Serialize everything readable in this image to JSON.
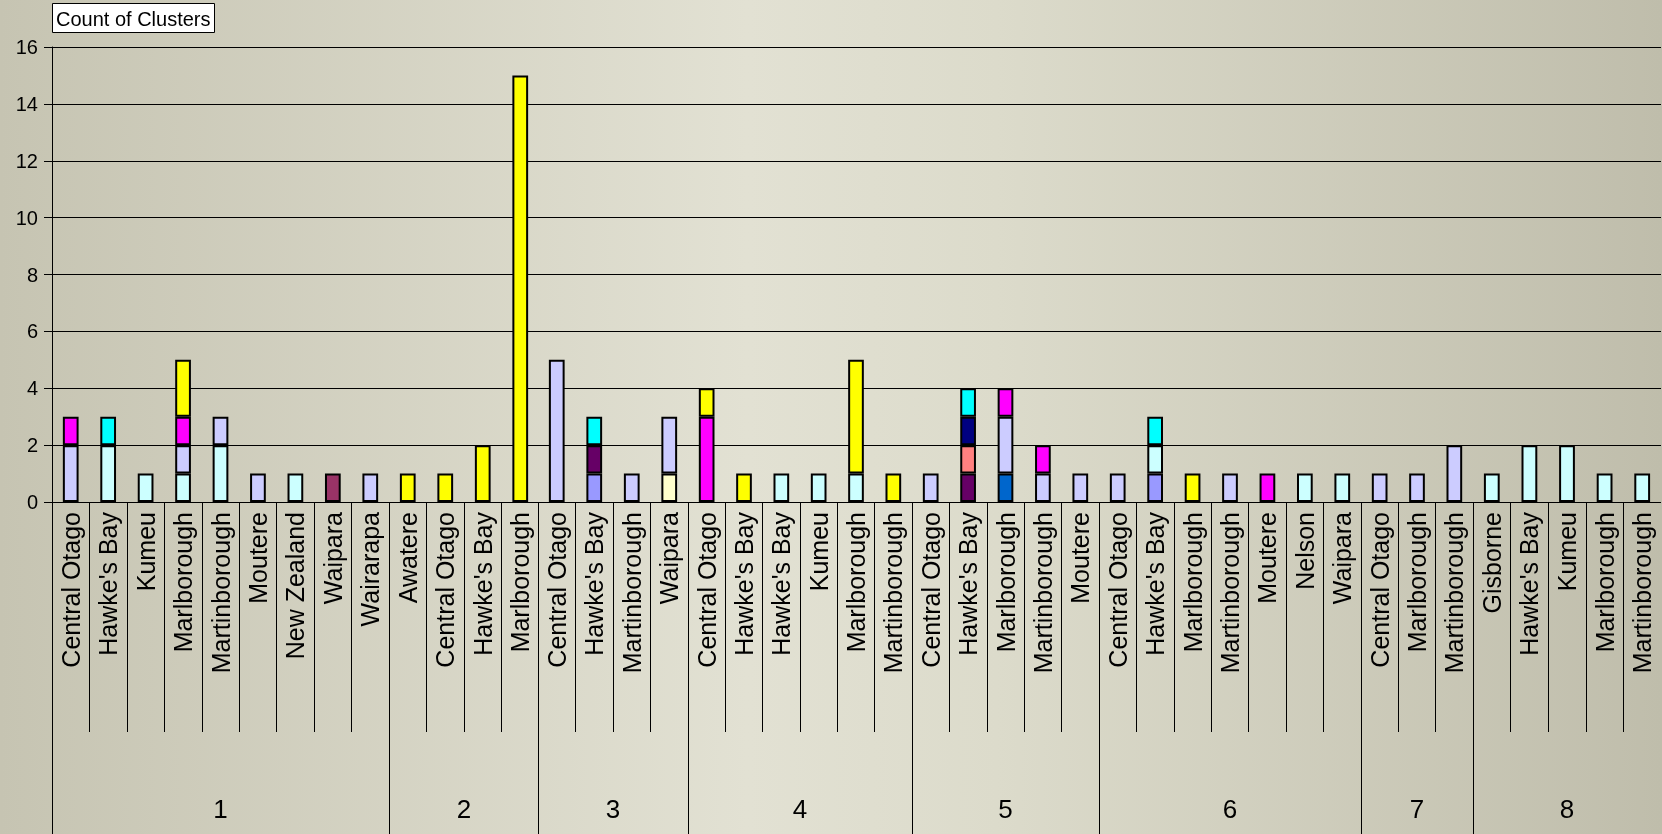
{
  "chart_data": [
    {
      "type": "bar",
      "title": "Count of Clusters",
      "xlabel": "1",
      "stacked": true,
      "grid": "y",
      "ylim": [
        0,
        16
      ],
      "yticks": [
        0,
        2,
        4,
        6,
        8,
        10,
        12,
        14,
        16
      ],
      "categories": [
        "Central Otago",
        "Hawke's Bay",
        "Kumeu",
        "Marlborough",
        "Martinborough",
        "Moutere",
        "New Zealand",
        "Waipara",
        "Wairarapa"
      ],
      "series": [
        {
          "color": "#993366",
          "values": [
            null,
            null,
            null,
            null,
            null,
            null,
            null,
            1,
            null
          ]
        },
        {
          "color": "#ccffff",
          "values": [
            null,
            2,
            1,
            1,
            2,
            null,
            1,
            null,
            null
          ]
        },
        {
          "color": "#ccccff",
          "values": [
            2,
            null,
            null,
            1,
            1,
            1,
            null,
            null,
            1
          ]
        },
        {
          "color": "#ff00ff",
          "values": [
            1,
            null,
            null,
            1,
            null,
            null,
            null,
            null,
            null
          ]
        },
        {
          "color": "#ffff00",
          "values": [
            null,
            null,
            null,
            2,
            null,
            null,
            null,
            null,
            null
          ]
        },
        {
          "color": "#00ffff",
          "values": [
            null,
            1,
            null,
            null,
            null,
            null,
            null,
            null,
            null
          ]
        }
      ]
    },
    {
      "type": "bar",
      "xlabel": "2",
      "stacked": true,
      "grid": "y",
      "ylim": [
        0,
        16
      ],
      "yticks": [
        0,
        2,
        4,
        6,
        8,
        10,
        12,
        14,
        16
      ],
      "tick_labels": "x",
      "categories": [
        "Awatere",
        "Central Otago",
        "Hawke's Bay",
        "Marlborough"
      ],
      "series": [
        {
          "color": "#ffff00",
          "values": [
            1,
            1,
            2,
            15
          ]
        }
      ]
    },
    {
      "type": "bar",
      "xlabel": "3",
      "stacked": true,
      "grid": "y",
      "ylim": [
        0,
        16
      ],
      "yticks": [
        0,
        2,
        4,
        6,
        8,
        10,
        12,
        14,
        16
      ],
      "tick_labels": "x",
      "categories": [
        "Central Otago",
        "Hawke's Bay",
        "Martinborough",
        "Waipara"
      ],
      "series": [
        {
          "color": "#9999ff",
          "values": [
            null,
            1,
            null,
            null
          ]
        },
        {
          "color": "#660066",
          "values": [
            null,
            1,
            null,
            null
          ]
        },
        {
          "color": "#ffffcc",
          "values": [
            null,
            null,
            null,
            1
          ]
        },
        {
          "color": "#ccccff",
          "values": [
            5,
            null,
            1,
            2
          ]
        },
        {
          "color": "#00ffff",
          "values": [
            null,
            1,
            null,
            null
          ]
        }
      ]
    },
    {
      "type": "bar",
      "xlabel": "4",
      "stacked": true,
      "grid": "y",
      "ylim": [
        0,
        16
      ],
      "yticks": [
        0,
        2,
        4,
        6,
        8,
        10,
        12,
        14,
        16
      ],
      "tick_labels": "x",
      "categories": [
        "Central Otago",
        "Hawke's Bay",
        "Hawke's Bay",
        "Kumeu",
        "Marlborough",
        "Martinborough"
      ],
      "series": [
        {
          "color": "#ccffff",
          "values": [
            null,
            null,
            1,
            1,
            1,
            null
          ]
        },
        {
          "color": "#ff00ff",
          "values": [
            3,
            null,
            null,
            null,
            null,
            null
          ]
        },
        {
          "color": "#ffff00",
          "values": [
            1,
            1,
            null,
            null,
            4,
            1
          ]
        }
      ]
    },
    {
      "type": "bar",
      "xlabel": "5",
      "stacked": true,
      "grid": "y",
      "ylim": [
        0,
        16
      ],
      "yticks": [
        0,
        2,
        4,
        6,
        8,
        10,
        12,
        14,
        16
      ],
      "tick_labels": "x",
      "categories": [
        "Central Otago",
        "Hawke's Bay",
        "Marlborough",
        "Martinborough",
        "Moutere"
      ],
      "series": [
        {
          "color": "#0066cc",
          "values": [
            null,
            null,
            1,
            null,
            null
          ]
        },
        {
          "color": "#660066",
          "values": [
            null,
            1,
            null,
            null,
            null
          ]
        },
        {
          "color": "#ff8080",
          "values": [
            null,
            1,
            null,
            null,
            null
          ]
        },
        {
          "color": "#000080",
          "values": [
            null,
            1,
            null,
            null,
            null
          ]
        },
        {
          "color": "#ccccff",
          "values": [
            1,
            null,
            2,
            1,
            1
          ]
        },
        {
          "color": "#ff00ff",
          "values": [
            null,
            null,
            1,
            1,
            null
          ]
        },
        {
          "color": "#00ffff",
          "values": [
            null,
            1,
            null,
            null,
            null
          ]
        }
      ]
    },
    {
      "type": "bar",
      "xlabel": "6",
      "stacked": true,
      "grid": "y",
      "ylim": [
        0,
        16
      ],
      "yticks": [
        0,
        2,
        4,
        6,
        8,
        10,
        12,
        14,
        16
      ],
      "tick_labels": "x",
      "categories": [
        "Central Otago",
        "Hawke's Bay",
        "Marlborough",
        "Martinborough",
        "Moutere",
        "Nelson",
        "Waipara"
      ],
      "series": [
        {
          "color": "#9999ff",
          "values": [
            null,
            1,
            null,
            null,
            null,
            null,
            null
          ]
        },
        {
          "color": "#ccffff",
          "values": [
            null,
            1,
            null,
            null,
            null,
            1,
            1
          ]
        },
        {
          "color": "#ccccff",
          "values": [
            1,
            null,
            null,
            1,
            null,
            null,
            null
          ]
        },
        {
          "color": "#ff00ff",
          "values": [
            null,
            null,
            null,
            null,
            1,
            null,
            null
          ]
        },
        {
          "color": "#ffff00",
          "values": [
            null,
            null,
            1,
            null,
            null,
            null,
            null
          ]
        },
        {
          "color": "#00ffff",
          "values": [
            null,
            1,
            null,
            null,
            null,
            null,
            null
          ]
        }
      ]
    },
    {
      "type": "bar",
      "xlabel": "7",
      "stacked": true,
      "grid": "y",
      "ylim": [
        0,
        16
      ],
      "yticks": [
        0,
        2,
        4,
        6,
        8,
        10,
        12,
        14,
        16
      ],
      "tick_labels": "x",
      "categories": [
        "Central Otago",
        "Marlborough",
        "Martinborough"
      ],
      "series": [
        {
          "color": "#ccccff",
          "values": [
            1,
            1,
            2
          ]
        }
      ]
    },
    {
      "type": "bar",
      "xlabel": "8",
      "stacked": true,
      "grid": "y",
      "ylim": [
        0,
        16
      ],
      "yticks": [
        0,
        2,
        4,
        6,
        8,
        10,
        12,
        14,
        16
      ],
      "tick_labels": "x",
      "categories": [
        "Gisborne",
        "Hawke's Bay",
        "Kumeu",
        "Marlborough",
        "Martinborough"
      ],
      "series": [
        {
          "color": "#ccffff",
          "values": [
            1,
            2,
            2,
            1,
            1
          ]
        }
      ]
    }
  ]
}
